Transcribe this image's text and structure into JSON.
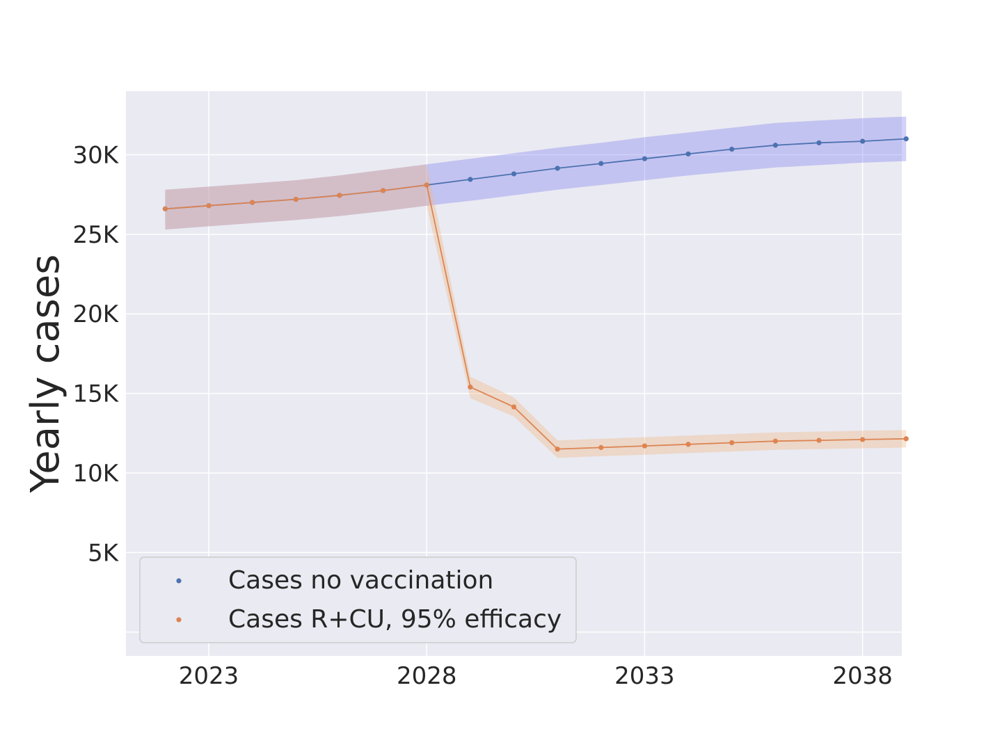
{
  "chart_data": {
    "type": "line",
    "title": "",
    "xlabel": "",
    "ylabel": "Yearly cases",
    "xlim": [
      2021.1,
      2038.9
    ],
    "ylim": [
      -1500,
      34000
    ],
    "x": [
      2022,
      2023,
      2024,
      2025,
      2026,
      2027,
      2028,
      2029,
      2030,
      2031,
      2032,
      2033,
      2034,
      2035,
      2036,
      2037,
      2038,
      2039
    ],
    "xticks": [
      2023,
      2028,
      2033,
      2038
    ],
    "xtick_labels": [
      "2023",
      "2028",
      "2033",
      "2038"
    ],
    "yticks": [
      5000,
      10000,
      15000,
      20000,
      25000,
      30000
    ],
    "ytick_labels": [
      "5K",
      "10K",
      "15K",
      "20K",
      "25K",
      "30K"
    ],
    "grid": true,
    "legend_position": "lower-left",
    "series": [
      {
        "name": "Cases no vaccination",
        "color": "#4c72b0",
        "band_color": "#7b7bf0",
        "values": [
          26600,
          26800,
          27000,
          27200,
          27450,
          27750,
          28100,
          28450,
          28800,
          29150,
          29450,
          29750,
          30050,
          30350,
          30600,
          30750,
          30850,
          31000
        ],
        "lower": [
          25300,
          25500,
          25700,
          25900,
          26150,
          26450,
          26800,
          27100,
          27450,
          27800,
          28100,
          28400,
          28700,
          28950,
          29200,
          29350,
          29500,
          29600
        ],
        "upper": [
          27800,
          28000,
          28200,
          28400,
          28700,
          29050,
          29400,
          29750,
          30100,
          30450,
          30750,
          31100,
          31400,
          31700,
          32000,
          32150,
          32300,
          32400
        ]
      },
      {
        "name": "Cases R+CU, 95% efficacy",
        "color": "#dd8452",
        "band_color": "#f2b57a",
        "values": [
          26600,
          26800,
          27000,
          27200,
          27450,
          27750,
          28100,
          15400,
          14150,
          11500,
          11600,
          11700,
          11800,
          11900,
          12000,
          12050,
          12100,
          12150
        ],
        "lower": [
          25300,
          25500,
          25700,
          25900,
          26150,
          26450,
          26800,
          14700,
          13550,
          10950,
          11050,
          11150,
          11250,
          11350,
          11450,
          11500,
          11550,
          11600
        ],
        "upper": [
          27800,
          28000,
          28200,
          28400,
          28700,
          29050,
          29400,
          16050,
          14750,
          12050,
          12150,
          12250,
          12350,
          12450,
          12550,
          12600,
          12650,
          12700
        ]
      }
    ]
  }
}
